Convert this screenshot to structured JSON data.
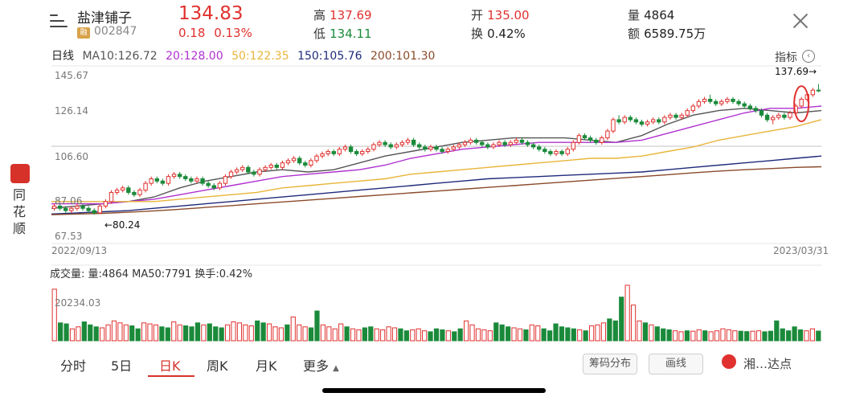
{
  "header": {
    "name": "盐津铺子",
    "tag": "融",
    "code": "002847",
    "price": "134.83",
    "change": "0.18",
    "change_pct": "0.13%",
    "high_label": "高",
    "high": "137.69",
    "low_label": "低",
    "low": "134.11",
    "open_label": "开",
    "open": "135.00",
    "turnover_label": "换",
    "turnover": "0.42%",
    "volume_label": "量",
    "volume": "4864",
    "amount_label": "额",
    "amount": "6589.75万"
  },
  "ma_bar": {
    "period": "日线",
    "ma10": "MA10:126.72",
    "ma20": "20:128.00",
    "ma50": "50:122.35",
    "ma150": "150:105.76",
    "ma200": "200:101.30"
  },
  "indicator_label": "指标",
  "side_app": {
    "name": "同花顺"
  },
  "volume_panel": {
    "title": "成交量",
    "vol": "量:4864",
    "ma50": "MA50:7791",
    "turnover": "换手:0.42%",
    "axis_label": "20234.03"
  },
  "tabs": [
    "分时",
    "5日",
    "日K",
    "周K",
    "月K",
    "更多"
  ],
  "buttons": {
    "chip": "筹码分布",
    "draw": "画线",
    "watermark": "湘…达点"
  },
  "colors": {
    "up": "#e0312f",
    "down": "#1a8a3a",
    "ma10": "#555555",
    "ma20": "#b030d0",
    "ma50": "#e8b53a",
    "ma150": "#1f2a7a",
    "ma200": "#8a4a2a"
  },
  "chart_data": {
    "type": "candlestick",
    "title": "",
    "x_start": "2022/09/13",
    "x_end": "2023/03/31",
    "y_ticks": [
      "145.67",
      "126.14",
      "106.60",
      "87.06",
      "67.53"
    ],
    "ylim": [
      67.53,
      145.67
    ],
    "max_marker": "137.69→",
    "min_marker": "←80.24",
    "note": "",
    "series": [
      {
        "name": "MA10",
        "values": [
          83,
          84,
          85,
          86,
          88,
          92,
          95,
          97,
          99,
          100,
          99,
          100,
          103,
          106,
          108,
          110,
          112,
          113,
          114,
          114,
          114,
          113,
          112,
          115,
          120,
          124,
          126,
          127,
          126,
          125,
          126
        ]
      },
      {
        "name": "MA20",
        "values": [
          85,
          85,
          85,
          86,
          87,
          89,
          91,
          93,
          95,
          97,
          98,
          99,
          100,
          102,
          105,
          107,
          109,
          110,
          111,
          112,
          112,
          112,
          112,
          113,
          116,
          119,
          122,
          125,
          127,
          127,
          128
        ]
      },
      {
        "name": "MA50",
        "values": [
          86,
          86,
          86,
          86,
          86,
          87,
          88,
          89,
          90,
          92,
          93,
          94,
          95,
          96,
          98,
          99,
          100,
          101,
          102,
          103,
          104,
          105,
          105,
          106,
          108,
          110,
          113,
          115,
          117,
          119,
          122
        ]
      },
      {
        "name": "MA150",
        "values": [
          80.5,
          81,
          81.5,
          82,
          83,
          84,
          85,
          86,
          87,
          88,
          89,
          90,
          91,
          92,
          93,
          94,
          95,
          96,
          96.5,
          97,
          97.5,
          98,
          98.5,
          99,
          100,
          101,
          102,
          103,
          104,
          105,
          106
        ]
      },
      {
        "name": "MA200",
        "values": [
          80.2,
          80.5,
          80.8,
          81.3,
          81.9,
          82.6,
          83.4,
          84.2,
          85,
          85.8,
          86.6,
          87.4,
          88.2,
          89,
          89.8,
          90.6,
          91.4,
          92.2,
          93,
          93.8,
          94.6,
          95.4,
          96.2,
          97,
          97.8,
          98.6,
          99.4,
          100,
          100.5,
          101,
          101.3
        ]
      }
    ],
    "candles": [
      [
        83,
        84,
        82,
        85
      ],
      [
        84,
        83,
        82,
        85
      ],
      [
        83,
        82,
        81,
        84
      ],
      [
        82,
        83,
        81,
        84
      ],
      [
        83,
        84,
        82,
        85
      ],
      [
        84,
        83,
        82,
        85
      ],
      [
        83,
        82,
        81,
        84
      ],
      [
        82,
        81,
        80.24,
        83
      ],
      [
        81,
        84,
        80.5,
        85
      ],
      [
        84,
        86,
        83,
        87
      ],
      [
        86,
        90,
        85,
        91
      ],
      [
        90,
        91,
        89,
        92
      ],
      [
        91,
        92,
        90,
        93
      ],
      [
        92,
        90,
        89,
        93
      ],
      [
        90,
        89,
        88,
        91
      ],
      [
        89,
        91,
        88,
        92
      ],
      [
        91,
        94,
        90,
        95
      ],
      [
        94,
        96,
        93,
        97
      ],
      [
        96,
        95,
        94,
        97
      ],
      [
        95,
        94,
        93,
        96
      ],
      [
        94,
        97,
        93,
        98
      ],
      [
        97,
        98,
        96,
        99
      ],
      [
        98,
        97,
        96,
        99
      ],
      [
        97,
        96,
        95,
        98
      ],
      [
        96,
        95,
        94,
        97
      ],
      [
        95,
        96,
        94,
        97
      ],
      [
        96,
        94,
        93,
        97
      ],
      [
        94,
        93,
        92,
        95
      ],
      [
        93,
        92,
        91,
        94
      ],
      [
        92,
        94,
        91,
        95
      ],
      [
        94,
        97,
        93,
        98
      ],
      [
        97,
        99,
        96,
        100
      ],
      [
        99,
        100,
        98,
        101
      ],
      [
        100,
        101,
        99,
        102
      ],
      [
        101,
        99,
        98,
        102
      ],
      [
        99,
        98,
        97,
        100
      ],
      [
        98,
        100,
        97,
        101
      ],
      [
        100,
        101,
        99,
        102
      ],
      [
        101,
        102,
        100,
        103
      ],
      [
        102,
        101,
        100,
        103
      ],
      [
        101,
        103,
        100,
        104
      ],
      [
        103,
        104,
        102,
        105
      ],
      [
        104,
        105,
        103,
        106
      ],
      [
        105,
        103,
        102,
        106
      ],
      [
        103,
        102,
        101,
        104
      ],
      [
        102,
        104,
        101,
        105
      ],
      [
        104,
        106,
        103,
        107
      ],
      [
        106,
        107,
        105,
        108
      ],
      [
        107,
        108,
        106,
        109
      ],
      [
        108,
        107,
        106,
        109
      ],
      [
        107,
        109,
        106,
        110
      ],
      [
        109,
        110,
        108,
        111
      ],
      [
        110,
        108,
        107,
        111
      ],
      [
        108,
        107,
        106,
        109
      ],
      [
        107,
        108,
        106,
        109
      ],
      [
        108,
        109,
        107,
        110
      ],
      [
        109,
        111,
        108,
        112
      ],
      [
        111,
        112,
        110,
        113
      ],
      [
        112,
        111,
        110,
        113
      ],
      [
        111,
        110,
        109,
        112
      ],
      [
        110,
        111,
        109,
        112
      ],
      [
        111,
        112,
        110,
        113
      ],
      [
        112,
        113,
        111,
        114
      ],
      [
        113,
        111,
        110,
        114
      ],
      [
        111,
        110,
        109,
        112
      ],
      [
        110,
        109,
        108,
        111
      ],
      [
        109,
        110,
        108,
        111
      ],
      [
        110,
        109,
        108,
        111
      ],
      [
        109,
        108,
        107,
        110
      ],
      [
        108,
        109,
        107,
        110
      ],
      [
        109,
        110,
        108,
        111
      ],
      [
        110,
        111,
        109,
        112
      ],
      [
        111,
        112,
        110,
        113
      ],
      [
        112,
        113,
        111,
        114
      ],
      [
        113,
        112,
        111,
        114
      ],
      [
        112,
        111,
        110,
        113
      ],
      [
        111,
        110,
        109,
        112
      ],
      [
        110,
        111,
        109,
        112
      ],
      [
        111,
        112,
        110,
        113
      ],
      [
        112,
        111,
        110,
        113
      ],
      [
        111,
        112,
        110,
        113
      ],
      [
        112,
        113,
        111,
        114
      ],
      [
        113,
        112,
        111,
        114
      ],
      [
        112,
        111,
        110,
        113
      ],
      [
        111,
        110,
        109,
        112
      ],
      [
        110,
        109,
        108,
        111
      ],
      [
        109,
        108,
        107,
        110
      ],
      [
        108,
        107,
        106,
        109
      ],
      [
        107,
        108,
        106,
        109
      ],
      [
        108,
        107,
        106,
        109
      ],
      [
        107,
        109,
        106,
        110
      ],
      [
        109,
        112,
        108,
        113
      ],
      [
        112,
        115,
        111,
        116
      ],
      [
        115,
        114,
        113,
        116
      ],
      [
        114,
        113,
        112,
        115
      ],
      [
        113,
        112,
        111,
        114
      ],
      [
        112,
        114,
        111,
        115
      ],
      [
        114,
        117,
        113,
        118
      ],
      [
        117,
        122,
        116,
        123
      ],
      [
        122,
        121,
        120,
        124
      ],
      [
        121,
        123,
        120,
        124
      ],
      [
        123,
        122,
        121,
        124
      ],
      [
        122,
        121,
        120,
        123
      ],
      [
        121,
        120,
        119,
        122
      ],
      [
        120,
        121,
        119,
        122
      ],
      [
        121,
        122,
        120,
        123
      ],
      [
        122,
        121,
        120,
        123
      ],
      [
        121,
        123,
        120,
        124
      ],
      [
        123,
        124,
        122,
        125
      ],
      [
        124,
        123,
        122,
        125
      ],
      [
        123,
        124,
        122,
        125
      ],
      [
        124,
        126,
        123,
        127
      ],
      [
        126,
        128,
        125,
        129
      ],
      [
        128,
        130,
        127,
        131
      ],
      [
        130,
        131,
        129,
        132
      ],
      [
        131,
        130,
        129,
        133
      ],
      [
        130,
        129,
        128,
        131
      ],
      [
        129,
        130,
        128,
        131
      ],
      [
        130,
        131,
        129,
        132
      ],
      [
        131,
        130,
        129,
        132
      ],
      [
        130,
        129,
        128,
        131
      ],
      [
        129,
        128,
        127,
        130
      ],
      [
        128,
        127,
        126,
        129
      ],
      [
        127,
        126,
        125,
        128
      ],
      [
        126,
        124,
        123,
        127
      ],
      [
        124,
        122,
        121,
        125
      ],
      [
        122,
        123,
        120,
        124
      ],
      [
        123,
        124,
        122,
        125
      ],
      [
        124,
        123,
        122,
        125
      ],
      [
        123,
        125,
        122,
        126
      ],
      [
        125,
        128,
        124,
        129
      ],
      [
        128,
        131,
        127,
        132
      ],
      [
        131,
        133,
        130,
        134
      ],
      [
        133,
        135,
        132,
        136
      ],
      [
        135,
        134.83,
        134.11,
        137.69
      ]
    ],
    "volume": {
      "ylim": [
        0,
        30000
      ],
      "y_tick": "20234.03",
      "values": [
        26000,
        9000,
        8500,
        6000,
        7000,
        9500,
        8000,
        7000,
        6500,
        8000,
        10000,
        9000,
        8000,
        7500,
        6000,
        9000,
        8500,
        8000,
        7000,
        6500,
        9500,
        8000,
        7500,
        7000,
        9000,
        8000,
        8500,
        7000,
        6500,
        8000,
        9500,
        9000,
        8000,
        7500,
        10000,
        9000,
        8500,
        7000,
        6500,
        8000,
        12000,
        8000,
        7000,
        6500,
        15000,
        8000,
        7000,
        6000,
        8500,
        7000,
        6000,
        5500,
        6500,
        7000,
        6000,
        5500,
        7000,
        6500,
        6000,
        5000,
        5500,
        6000,
        5000,
        4500,
        6000,
        5500,
        5000,
        4500,
        6000,
        10000,
        8000,
        6000,
        5500,
        5000,
        9000,
        8000,
        7000,
        6500,
        6000,
        5500,
        8000,
        7500,
        6000,
        5000,
        8500,
        7000,
        6500,
        6000,
        5500,
        5000,
        7500,
        8000,
        9000,
        11000,
        10000,
        22000,
        28000,
        18000,
        10000,
        9000,
        8000,
        7000,
        6000,
        5500,
        5000,
        4500,
        5000,
        4800,
        5500,
        5000,
        4500,
        5000,
        6000,
        5500,
        5000,
        4800,
        4600,
        4800,
        5000,
        4500,
        4800,
        10000,
        6000,
        5000,
        7000,
        5500,
        5000,
        6000,
        4864
      ]
    }
  }
}
